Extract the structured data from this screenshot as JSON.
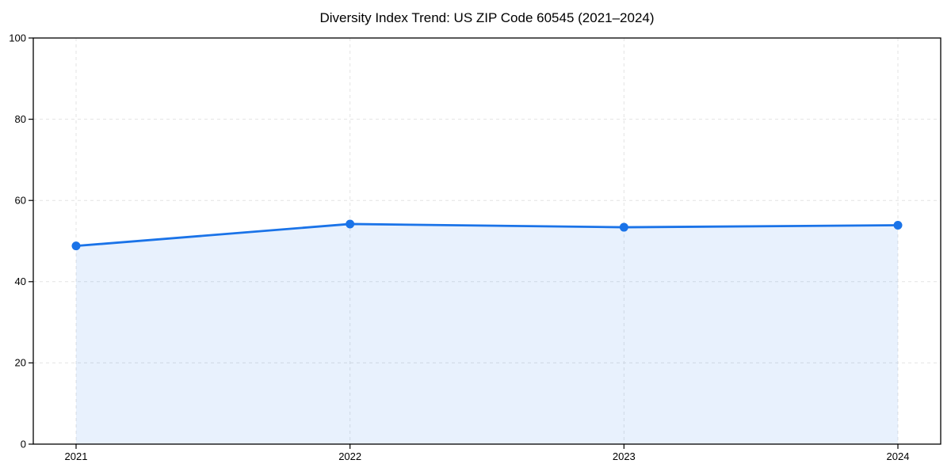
{
  "chart_data": {
    "type": "line",
    "title": "Diversity Index Trend: US ZIP Code 60545 (2021–2024)",
    "categories": [
      "2021",
      "2022",
      "2023",
      "2024"
    ],
    "series": [
      {
        "name": "Diversity Index",
        "values": [
          48.8,
          54.2,
          53.4,
          53.9
        ]
      }
    ],
    "xlabel": "",
    "ylabel": "",
    "ylim": [
      0,
      100
    ],
    "yticks": [
      0,
      20,
      40,
      60,
      80,
      100
    ],
    "grid": "dashed both axes",
    "legend": "none",
    "area_fill_to_zero": true,
    "colors": {
      "line": "#1a73e8",
      "marker": "#1a73e8",
      "area_fill": "rgba(26,115,232,0.10)",
      "grid": "#e3e3e3",
      "frame": "#000000",
      "tick_text": "#000000",
      "background": "#ffffff"
    }
  }
}
